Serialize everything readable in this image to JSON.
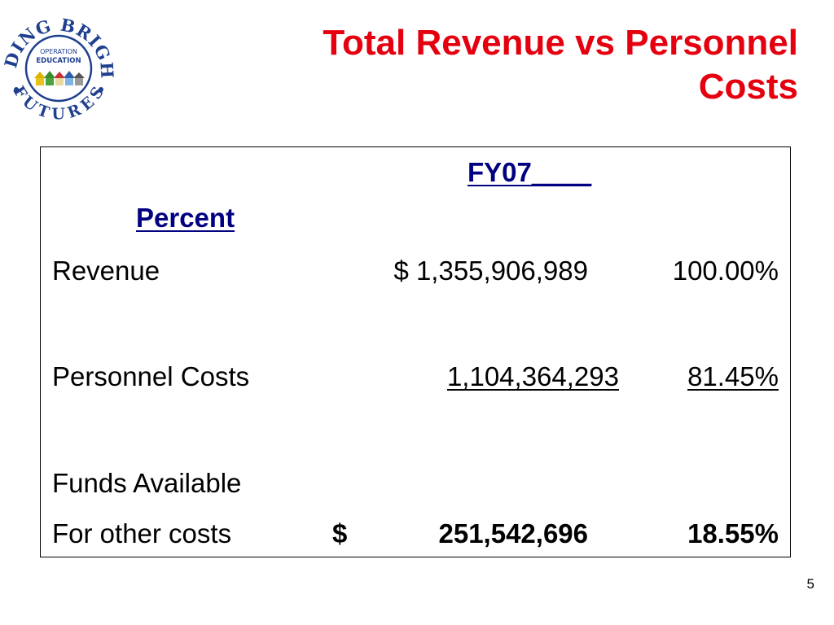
{
  "logo": {
    "text_top": "BUILDING BRIGHTER",
    "text_bottom": "FUTURES",
    "center_line1": "OPERATION",
    "center_line2": "EDUCATION"
  },
  "title": {
    "line1": "Total Revenue vs Personnel",
    "line2": "Costs"
  },
  "table": {
    "header_fy": "FY07____",
    "header_percent": "Percent",
    "rows": [
      {
        "label": "Revenue",
        "amount": "$ 1,355,906,989",
        "percent": "100.00%"
      },
      {
        "label": "Personnel Costs",
        "amount": "1,104,364,293",
        "percent": "81.45%"
      },
      {
        "label_line1": "Funds Available",
        "label_line2": "For other costs",
        "currency": "$",
        "amount": "251,542,696",
        "percent": "18.55%"
      }
    ]
  },
  "page_number": "5",
  "colors": {
    "title": "#e4000f",
    "header": "#000080",
    "logo_ring": "#1f3f8f"
  }
}
